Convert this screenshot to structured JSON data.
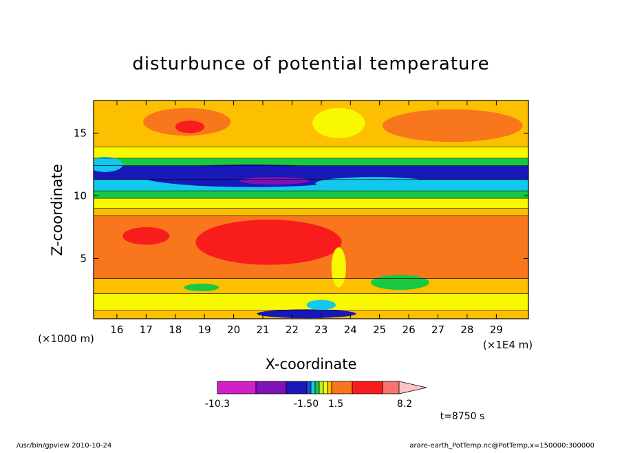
{
  "chart_data": {
    "type": "heatmap",
    "title": "disturbunce of potential temperature",
    "xlabel": "X-coordinate",
    "ylabel": "Z-coordinate",
    "x_unit": "(×1E4 m)",
    "y_unit": "(×1000 m)",
    "x_range": [
      15.2,
      30.1
    ],
    "y_range": [
      0.2,
      17.6
    ],
    "x_ticks": [
      "16",
      "17",
      "18",
      "19",
      "20",
      "21",
      "22",
      "23",
      "24",
      "25",
      "26",
      "27",
      "28",
      "29"
    ],
    "y_ticks": [
      "5",
      "10",
      "15"
    ],
    "colorbar": {
      "labels": [
        "-10.3",
        "-1.50",
        "1.5",
        "8.2"
      ],
      "colors": [
        "#d020c8",
        "#7e12b4",
        "#1818b8",
        "#1c50e0",
        "#12c8ec",
        "#18c840",
        "#b8f028",
        "#f8f800",
        "#fcc000",
        "#f8761c",
        "#f81c1c",
        "#fc7070",
        "#fcc4c4"
      ]
    },
    "bands": [
      {
        "z": [
          0.2,
          0.9
        ],
        "color": "#fcc000"
      },
      {
        "z": [
          0.9,
          2.2
        ],
        "color": "#f8f800"
      },
      {
        "z": [
          2.2,
          3.4
        ],
        "color": "#fcc000"
      },
      {
        "z": [
          3.4,
          8.4
        ],
        "color": "#f8761c"
      },
      {
        "z": [
          8.4,
          9.0
        ],
        "color": "#fcc000"
      },
      {
        "z": [
          9.0,
          9.8
        ],
        "color": "#f8f800"
      },
      {
        "z": [
          9.8,
          10.4
        ],
        "color": "#18c840"
      },
      {
        "z": [
          10.4,
          11.3
        ],
        "color": "#12c8ec"
      },
      {
        "z": [
          11.3,
          12.4
        ],
        "color": "#1818b8"
      },
      {
        "z": [
          12.4,
          13.0
        ],
        "color": "#18c840"
      },
      {
        "z": [
          13.0,
          13.9
        ],
        "color": "#f8f800"
      },
      {
        "z": [
          13.9,
          17.6
        ],
        "color": "#fcc000"
      }
    ],
    "blobs": [
      {
        "x": 20.6,
        "z": 11.6,
        "rx": 3.8,
        "rz": 0.9,
        "color": "#1818b8"
      },
      {
        "x": 21.4,
        "z": 11.2,
        "rx": 1.2,
        "rz": 0.3,
        "color": "#7e12b4"
      },
      {
        "x": 24.8,
        "z": 11.0,
        "rx": 2.0,
        "rz": 0.5,
        "color": "#12c8ec"
      },
      {
        "x": 17.0,
        "z": 6.8,
        "rx": 0.8,
        "rz": 0.7,
        "color": "#f81c1c"
      },
      {
        "x": 21.2,
        "z": 6.3,
        "rx": 2.5,
        "rz": 1.8,
        "color": "#f81c1c"
      },
      {
        "x": 18.4,
        "z": 15.9,
        "rx": 1.5,
        "rz": 1.1,
        "color": "#f8761c"
      },
      {
        "x": 27.5,
        "z": 15.6,
        "rx": 2.4,
        "rz": 1.3,
        "color": "#f8761c"
      },
      {
        "x": 18.5,
        "z": 15.5,
        "rx": 0.5,
        "rz": 0.5,
        "color": "#f81c1c"
      },
      {
        "x": 23.6,
        "z": 15.8,
        "rx": 0.9,
        "rz": 1.2,
        "color": "#f8f800"
      },
      {
        "x": 22.5,
        "z": 0.6,
        "rx": 1.7,
        "rz": 0.35,
        "color": "#1818b8"
      },
      {
        "x": 23.0,
        "z": 1.3,
        "rx": 0.5,
        "rz": 0.4,
        "color": "#12c8ec"
      },
      {
        "x": 25.7,
        "z": 3.1,
        "rx": 1.0,
        "rz": 0.6,
        "color": "#18c840"
      },
      {
        "x": 18.9,
        "z": 2.7,
        "rx": 0.6,
        "rz": 0.3,
        "color": "#18c840"
      },
      {
        "x": 15.6,
        "z": 12.5,
        "rx": 0.6,
        "rz": 0.6,
        "color": "#12c8ec"
      },
      {
        "x": 23.6,
        "z": 4.3,
        "rx": 0.25,
        "rz": 1.6,
        "color": "#f8f800"
      }
    ],
    "time_label": "t=8750 s"
  },
  "footer": {
    "left": "/usr/bin/gpview   2010-10-24",
    "right": "arare-earth_PotTemp.nc@PotTemp,x=150000:300000"
  }
}
